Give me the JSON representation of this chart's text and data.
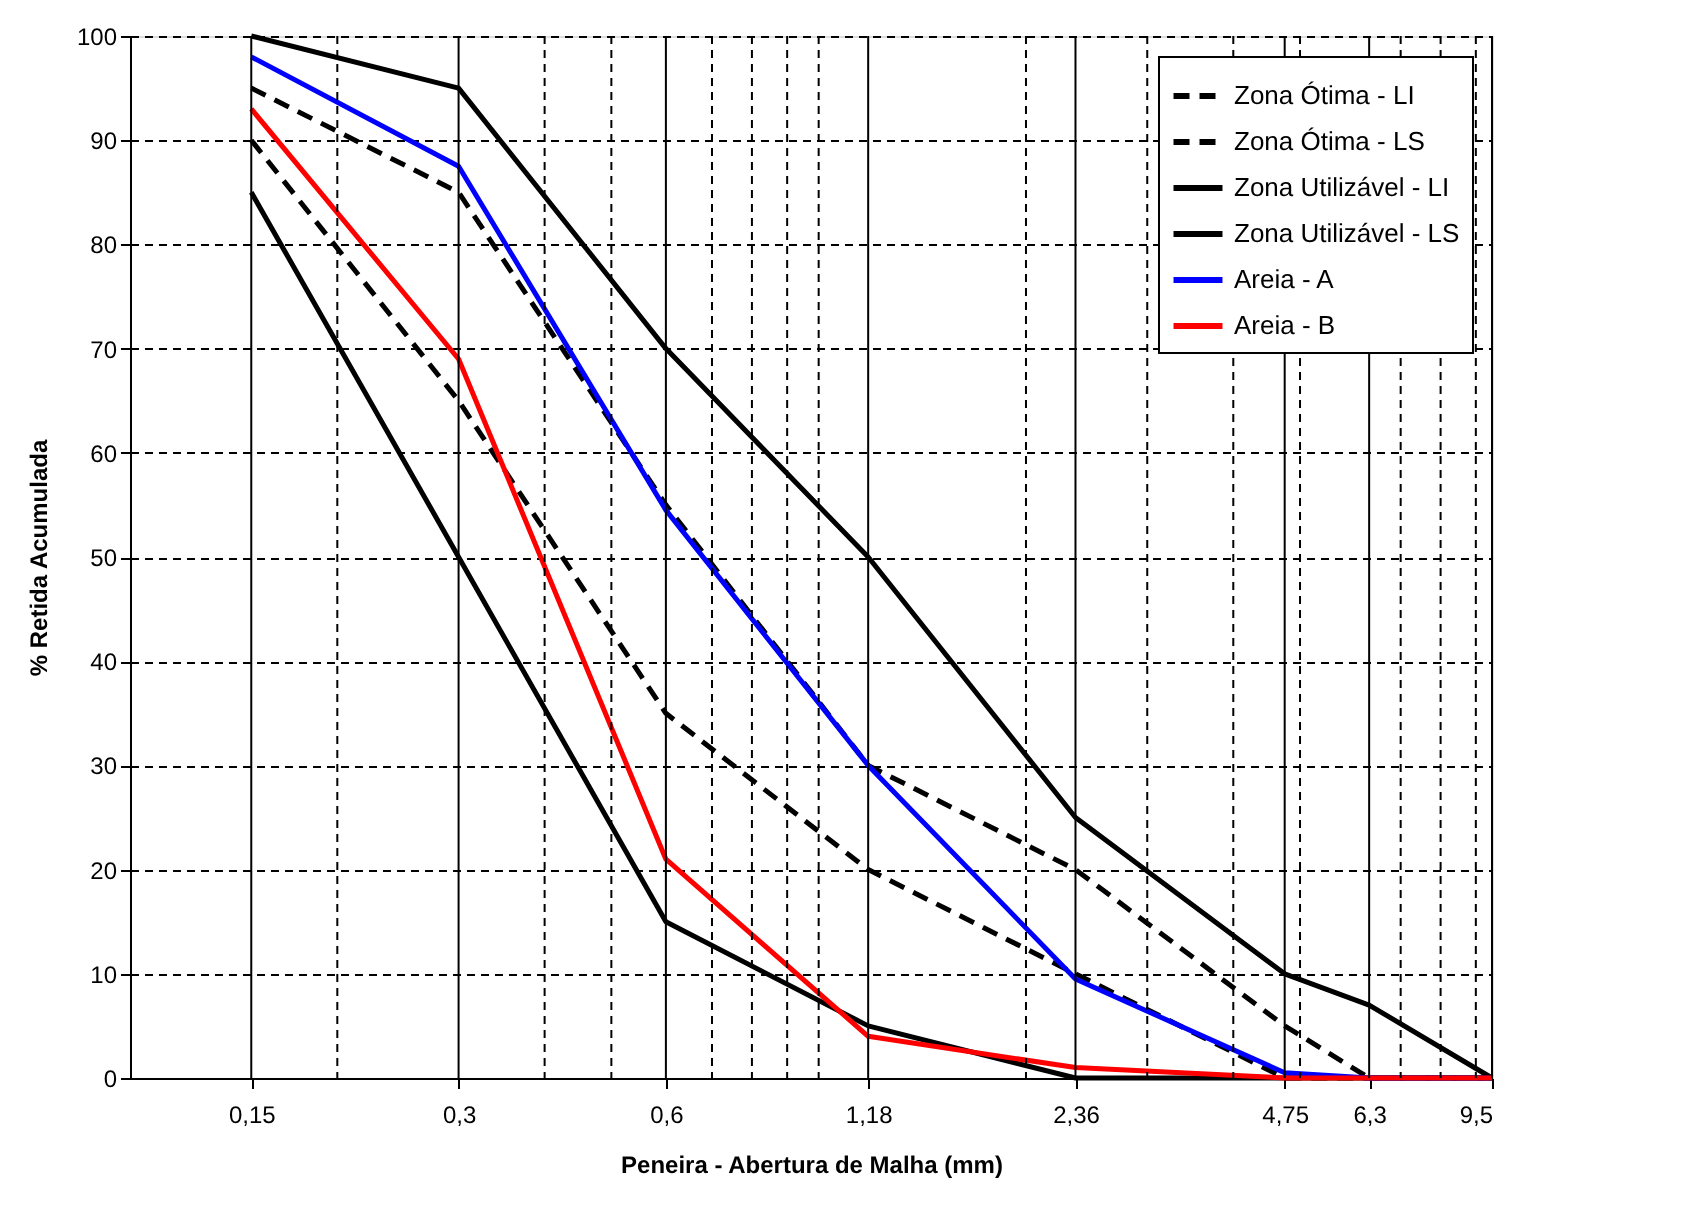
{
  "chart_data": {
    "type": "line",
    "xlabel": "Peneira - Abertura de Malha (mm)",
    "ylabel": "% Retida Acumulada",
    "x": [
      0.15,
      0.3,
      0.6,
      1.18,
      2.36,
      4.75,
      6.3,
      9.5
    ],
    "log": "x",
    "xlim": [
      0.1,
      9.5
    ],
    "ylim": [
      0,
      100
    ],
    "xticks": [
      {
        "value": 0.15,
        "label": "0,15"
      },
      {
        "value": 0.2,
        "label": null
      },
      {
        "value": 0.3,
        "label": "0,3"
      },
      {
        "value": 0.4,
        "label": null
      },
      {
        "value": 0.5,
        "label": null
      },
      {
        "value": 0.6,
        "label": "0,6"
      },
      {
        "value": 0.7,
        "label": null
      },
      {
        "value": 0.8,
        "label": null
      },
      {
        "value": 0.9,
        "label": null
      },
      {
        "value": 1.0,
        "label": null
      },
      {
        "value": 1.18,
        "label": "1,18"
      },
      {
        "value": 2,
        "label": null
      },
      {
        "value": 2.36,
        "label": "2,36"
      },
      {
        "value": 3,
        "label": null
      },
      {
        "value": 4,
        "label": null
      },
      {
        "value": 4.75,
        "label": "4,75"
      },
      {
        "value": 5,
        "label": null
      },
      {
        "value": 6.3,
        "label": "6,3"
      },
      {
        "value": 7,
        "label": null
      },
      {
        "value": 8,
        "label": null
      },
      {
        "value": 9,
        "label": null
      },
      {
        "value": 9.5,
        "label": "9,5"
      }
    ],
    "yticks": [
      0,
      10,
      20,
      30,
      40,
      50,
      60,
      70,
      80,
      90,
      100
    ],
    "grid": true,
    "legend": "top right",
    "marker": "none",
    "series": [
      {
        "name": "Zona Ótima - LI",
        "color": "#000000",
        "line_style": "dashed",
        "values": [
          90,
          65,
          35,
          20,
          10,
          0,
          0,
          0
        ]
      },
      {
        "name": "Zona Ótima - LS",
        "color": "#000000",
        "line_style": "dashed",
        "values": [
          95,
          85,
          55,
          30,
          20,
          5,
          0,
          0
        ]
      },
      {
        "name": "Zona Utilizável - LI",
        "color": "#000000",
        "line_style": "solid",
        "values": [
          85,
          50,
          15,
          5,
          0,
          0,
          0,
          0
        ]
      },
      {
        "name": "Zona Utilizável - LS",
        "color": "#000000",
        "line_style": "solid",
        "values": [
          100,
          95,
          70,
          50,
          25,
          10,
          7,
          0
        ]
      },
      {
        "name": "Areia - A",
        "color": "#0000ff",
        "line_style": "solid",
        "values": [
          98,
          87.5,
          54.5,
          30,
          9.5,
          0.5,
          0,
          0
        ]
      },
      {
        "name": "Areia - B",
        "color": "#ff0000",
        "line_style": "solid",
        "values": [
          93,
          69,
          21,
          4,
          1,
          0,
          0,
          0
        ]
      }
    ]
  }
}
